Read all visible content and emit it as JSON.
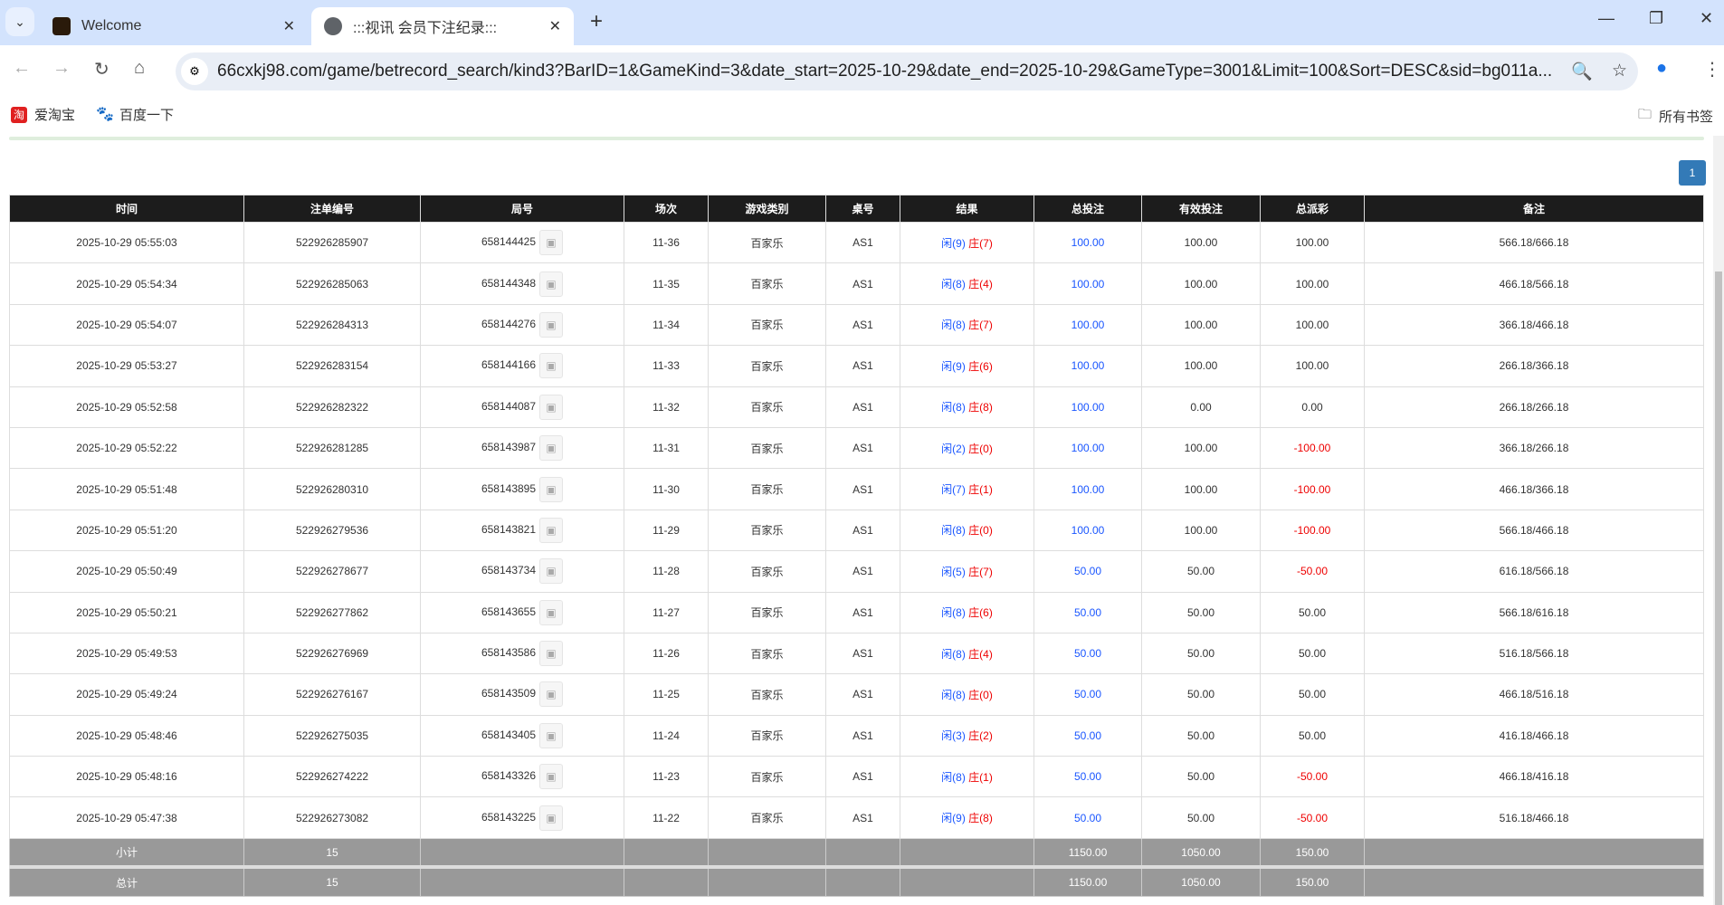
{
  "browser": {
    "tabs": [
      {
        "title": "Welcome"
      },
      {
        "title": ":::视讯 会员下注纪录:::"
      }
    ],
    "url": "66cxkj98.com/game/betrecord_search/kind3?BarID=1&GameKind=3&date_start=2025-10-29&date_end=2025-10-29&GameType=3001&Limit=100&Sort=DESC&sid=bg011a...",
    "bookmarks": [
      {
        "label": "爱淘宝"
      },
      {
        "label": "百度一下"
      }
    ],
    "all_bookmarks": "所有书签"
  },
  "pagination": {
    "current": "1"
  },
  "table": {
    "headers": [
      "时间",
      "注单编号",
      "局号",
      "场次",
      "游戏类别",
      "桌号",
      "结果",
      "总投注",
      "有效投注",
      "总派彩",
      "备注"
    ],
    "rows": [
      [
        "2025-10-29 05:55:03",
        "522926285907",
        "658144425",
        "11-36",
        "百家乐",
        "AS1",
        "闲(9)",
        "庄(7)",
        "100.00",
        "100.00",
        "100.00",
        "566.18/666.18"
      ],
      [
        "2025-10-29 05:54:34",
        "522926285063",
        "658144348",
        "11-35",
        "百家乐",
        "AS1",
        "闲(8)",
        "庄(4)",
        "100.00",
        "100.00",
        "100.00",
        "466.18/566.18"
      ],
      [
        "2025-10-29 05:54:07",
        "522926284313",
        "658144276",
        "11-34",
        "百家乐",
        "AS1",
        "闲(8)",
        "庄(7)",
        "100.00",
        "100.00",
        "100.00",
        "366.18/466.18"
      ],
      [
        "2025-10-29 05:53:27",
        "522926283154",
        "658144166",
        "11-33",
        "百家乐",
        "AS1",
        "闲(9)",
        "庄(6)",
        "100.00",
        "100.00",
        "100.00",
        "266.18/366.18"
      ],
      [
        "2025-10-29 05:52:58",
        "522926282322",
        "658144087",
        "11-32",
        "百家乐",
        "AS1",
        "闲(8)",
        "庄(8)",
        "100.00",
        "0.00",
        "0.00",
        "266.18/266.18"
      ],
      [
        "2025-10-29 05:52:22",
        "522926281285",
        "658143987",
        "11-31",
        "百家乐",
        "AS1",
        "闲(2)",
        "庄(0)",
        "100.00",
        "100.00",
        "-100.00",
        "366.18/266.18"
      ],
      [
        "2025-10-29 05:51:48",
        "522926280310",
        "658143895",
        "11-30",
        "百家乐",
        "AS1",
        "闲(7)",
        "庄(1)",
        "100.00",
        "100.00",
        "-100.00",
        "466.18/366.18"
      ],
      [
        "2025-10-29 05:51:20",
        "522926279536",
        "658143821",
        "11-29",
        "百家乐",
        "AS1",
        "闲(8)",
        "庄(0)",
        "100.00",
        "100.00",
        "-100.00",
        "566.18/466.18"
      ],
      [
        "2025-10-29 05:50:49",
        "522926278677",
        "658143734",
        "11-28",
        "百家乐",
        "AS1",
        "闲(5)",
        "庄(7)",
        "50.00",
        "50.00",
        "-50.00",
        "616.18/566.18"
      ],
      [
        "2025-10-29 05:50:21",
        "522926277862",
        "658143655",
        "11-27",
        "百家乐",
        "AS1",
        "闲(8)",
        "庄(6)",
        "50.00",
        "50.00",
        "50.00",
        "566.18/616.18"
      ],
      [
        "2025-10-29 05:49:53",
        "522926276969",
        "658143586",
        "11-26",
        "百家乐",
        "AS1",
        "闲(8)",
        "庄(4)",
        "50.00",
        "50.00",
        "50.00",
        "516.18/566.18"
      ],
      [
        "2025-10-29 05:49:24",
        "522926276167",
        "658143509",
        "11-25",
        "百家乐",
        "AS1",
        "闲(8)",
        "庄(0)",
        "50.00",
        "50.00",
        "50.00",
        "466.18/516.18"
      ],
      [
        "2025-10-29 05:48:46",
        "522926275035",
        "658143405",
        "11-24",
        "百家乐",
        "AS1",
        "闲(3)",
        "庄(2)",
        "50.00",
        "50.00",
        "50.00",
        "416.18/466.18"
      ],
      [
        "2025-10-29 05:48:16",
        "522926274222",
        "658143326",
        "11-23",
        "百家乐",
        "AS1",
        "闲(8)",
        "庄(1)",
        "50.00",
        "50.00",
        "-50.00",
        "466.18/416.18"
      ],
      [
        "2025-10-29 05:47:38",
        "522926273082",
        "658143225",
        "11-22",
        "百家乐",
        "AS1",
        "闲(9)",
        "庄(8)",
        "50.00",
        "50.00",
        "-50.00",
        "516.18/466.18"
      ]
    ],
    "subtotal": {
      "label": "小计",
      "count": "15",
      "total_bet": "1150.00",
      "valid_bet": "1050.00",
      "payout": "150.00"
    },
    "total": {
      "label": "总计",
      "count": "15",
      "total_bet": "1150.00",
      "valid_bet": "1050.00",
      "payout": "150.00"
    }
  },
  "colors": {
    "header_bg": "#1c1c1c",
    "blue": "#1a56ff",
    "red": "#ee0000",
    "summary_bg": "#999999",
    "page_button": "#337ab7"
  }
}
